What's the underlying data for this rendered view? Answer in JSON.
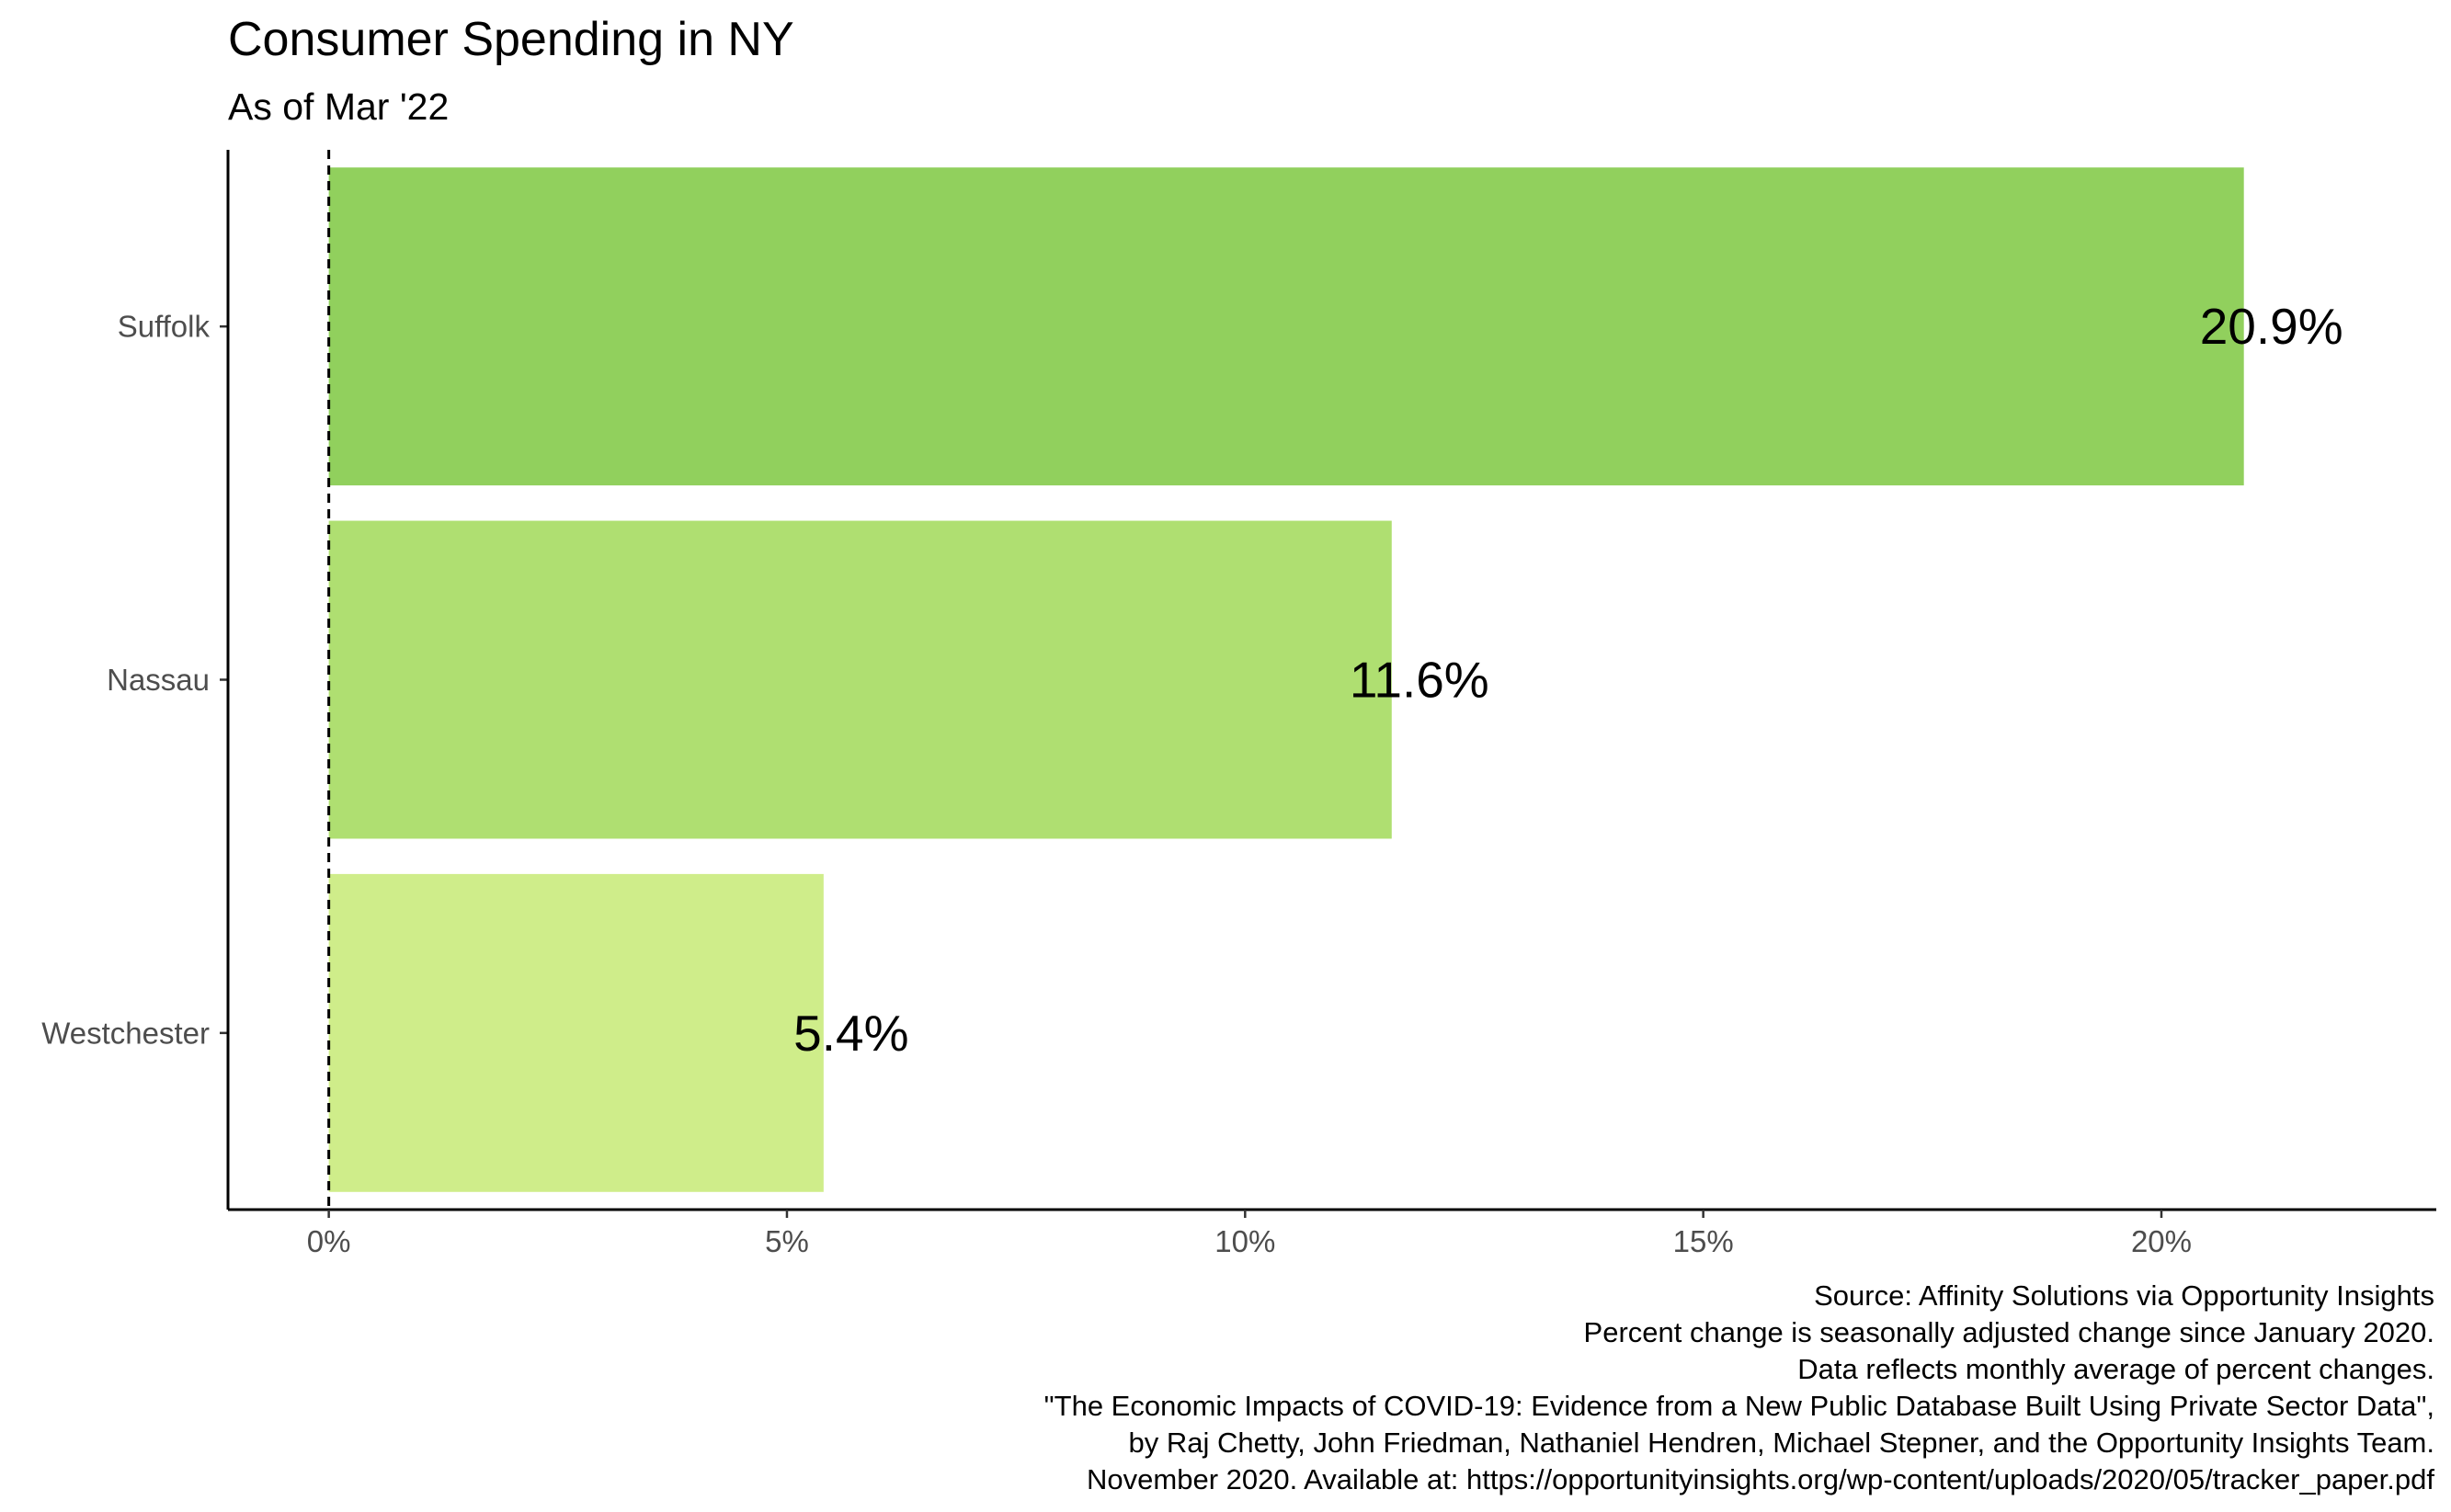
{
  "chart_data": {
    "type": "bar",
    "orientation": "horizontal",
    "title": "Consumer Spending in NY",
    "subtitle": "As of Mar '22",
    "xlabel": "",
    "ylabel": "",
    "categories": [
      "Suffolk",
      "Nassau",
      "Westchester"
    ],
    "values": [
      20.9,
      11.6,
      5.4
    ],
    "data_labels": [
      "20.9%",
      "11.6%",
      "5.4%"
    ],
    "colors": [
      "#91d05d",
      "#afdf71",
      "#cfed8a"
    ],
    "xlim": [
      -1.1,
      23.0
    ],
    "x_ticks": [
      0,
      5,
      10,
      15,
      20
    ],
    "x_tick_labels": [
      "0%",
      "5%",
      "10%",
      "15%",
      "20%"
    ],
    "reference_line": {
      "x": 0,
      "style": "dashed"
    },
    "grid": false,
    "legend": "none",
    "caption": [
      "Source: Affinity Solutions via Opportunity Insights",
      "Percent change is seasonally adjusted change since January 2020.",
      "Data reflects monthly average of percent changes.",
      "\"The Economic Impacts of COVID-19: Evidence from a New Public Database Built Using Private Sector Data\",",
      "by Raj Chetty, John Friedman, Nathaniel Hendren, Michael Stepner, and the Opportunity Insights Team.",
      "November 2020. Available at: https://opportunityinsights.org/wp-content/uploads/2020/05/tracker_paper.pdf"
    ]
  }
}
